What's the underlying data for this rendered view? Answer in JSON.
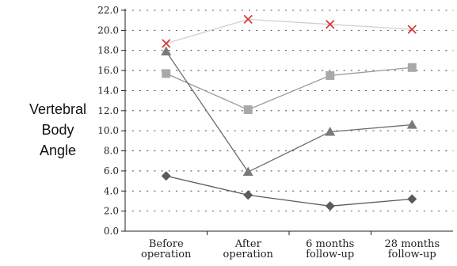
{
  "chart_data": {
    "type": "line",
    "ylabel": [
      "Vertebral",
      "Body",
      "Angle"
    ],
    "categories": [
      [
        "Before",
        "operation"
      ],
      [
        "After",
        "operation"
      ],
      [
        "6 months",
        "follow-up"
      ],
      [
        "28 months",
        "follow-up"
      ]
    ],
    "ylim": [
      0,
      22
    ],
    "yticks": [
      "0.0",
      "2.0",
      "4.0",
      "6.0",
      "8.0",
      "10.0",
      "12.0",
      "14.0",
      "16.0",
      "18.0",
      "20.0",
      "22.0"
    ],
    "grid": "dotted",
    "series": [
      {
        "values": [
          18.7,
          21.1,
          20.6,
          20.1
        ],
        "marker": "x",
        "color": "#d43a3a",
        "line_color": "#cfcfcf"
      },
      {
        "values": [
          15.7,
          12.1,
          15.5,
          16.3
        ],
        "marker": "square",
        "color": "#a9a9a9",
        "line_color": "#9a9a9a"
      },
      {
        "values": [
          17.9,
          5.9,
          9.9,
          10.6
        ],
        "marker": "triangle",
        "color": "#7a7a7a",
        "line_color": "#6e6e6e"
      },
      {
        "values": [
          5.5,
          3.6,
          2.5,
          3.2
        ],
        "marker": "diamond",
        "color": "#5b5b5b",
        "line_color": "#5b5b5b"
      }
    ]
  }
}
